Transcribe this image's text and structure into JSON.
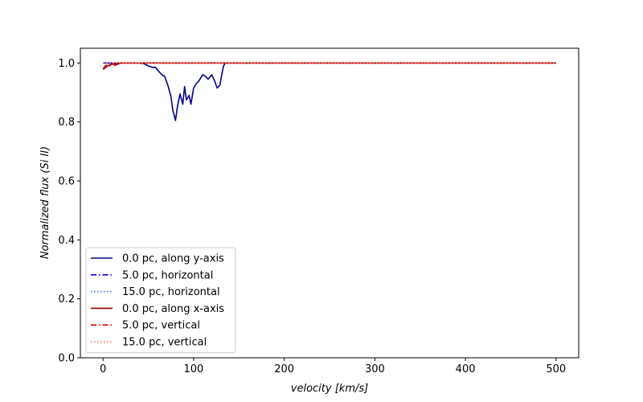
{
  "chart_data": {
    "type": "line",
    "title": "",
    "xlabel": "velocity [km/s]",
    "ylabel": "Normalized flux (Si II)",
    "xlim": [
      -25,
      525
    ],
    "ylim": [
      0.0,
      1.05
    ],
    "xticks": [
      0,
      100,
      200,
      300,
      400,
      500
    ],
    "yticks": [
      0.0,
      0.2,
      0.4,
      0.6,
      0.8,
      1.0
    ],
    "xtick_labels": [
      "0",
      "100",
      "200",
      "300",
      "400",
      "500"
    ],
    "ytick_labels": [
      "0.0",
      "0.2",
      "0.4",
      "0.6",
      "0.8",
      "1.0"
    ],
    "grid": false,
    "legend_position": "lower-left",
    "series": [
      {
        "name": "0.0 pc, along y-axis",
        "color": "#00008b",
        "style": "solid",
        "x": [
          0,
          5,
          10,
          15,
          20,
          25,
          30,
          35,
          40,
          45,
          50,
          55,
          58,
          62,
          65,
          68,
          72,
          75,
          77,
          80,
          82,
          85,
          88,
          90,
          92,
          95,
          97,
          100,
          103,
          106,
          110,
          113,
          116,
          120,
          123,
          126,
          129,
          131,
          133,
          135,
          140,
          200,
          300,
          400,
          500
        ],
        "y": [
          1.0,
          1.0,
          0.998,
          0.995,
          1.0,
          1.0,
          1.0,
          1.0,
          1.0,
          0.998,
          0.99,
          0.985,
          0.985,
          0.97,
          0.96,
          0.955,
          0.92,
          0.885,
          0.84,
          0.805,
          0.85,
          0.895,
          0.86,
          0.92,
          0.875,
          0.89,
          0.86,
          0.915,
          0.93,
          0.94,
          0.96,
          0.955,
          0.945,
          0.96,
          0.94,
          0.915,
          0.925,
          0.96,
          0.99,
          1.0,
          1.0,
          1.0,
          1.0,
          1.0,
          1.0
        ]
      },
      {
        "name": "5.0 pc, horizontal",
        "color": "#0000ee",
        "style": "dashdot",
        "x": [
          0,
          100,
          200,
          300,
          400,
          500
        ],
        "y": [
          1.0,
          1.0,
          1.0,
          1.0,
          1.0,
          1.0
        ]
      },
      {
        "name": "15.0 pc, horizontal",
        "color": "#1e6fd9",
        "style": "dotted",
        "x": [
          0,
          100,
          200,
          300,
          400,
          500
        ],
        "y": [
          1.0,
          1.0,
          1.0,
          1.0,
          1.0,
          1.0
        ]
      },
      {
        "name": "0.0 pc, along x-axis",
        "color": "#8b0000",
        "style": "solid",
        "x": [
          0,
          5,
          10,
          15,
          20,
          100,
          200,
          300,
          400,
          500
        ],
        "y": [
          0.978,
          0.99,
          0.996,
          1.0,
          1.0,
          1.0,
          1.0,
          1.0,
          1.0,
          1.0
        ]
      },
      {
        "name": "5.0 pc, vertical",
        "color": "#ee0000",
        "style": "dashdot",
        "x": [
          0,
          3,
          7,
          10,
          13,
          17,
          20,
          100,
          200,
          300,
          400,
          500
        ],
        "y": [
          0.98,
          0.992,
          0.99,
          0.998,
          0.992,
          0.996,
          1.0,
          1.0,
          1.0,
          1.0,
          1.0,
          1.0
        ]
      },
      {
        "name": "15.0 pc, vertical",
        "color": "#ff6347",
        "style": "dotted",
        "x": [
          0,
          100,
          200,
          300,
          400,
          500
        ],
        "y": [
          1.0,
          1.0,
          1.0,
          1.0,
          1.0,
          1.0
        ]
      }
    ]
  }
}
